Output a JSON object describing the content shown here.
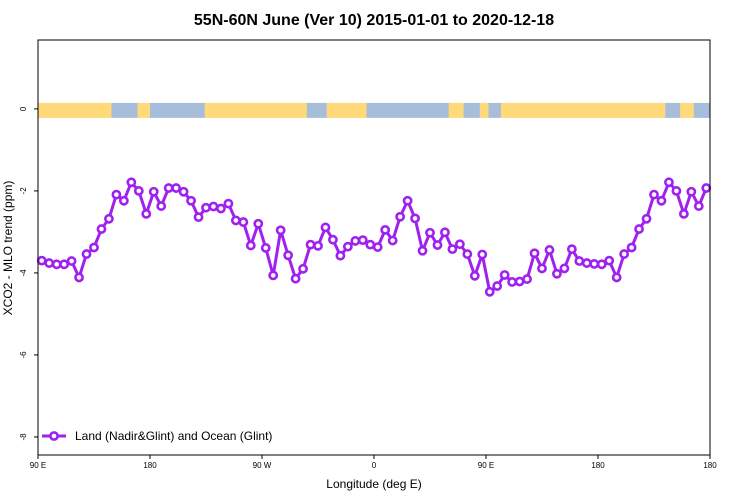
{
  "chart_data": {
    "type": "line",
    "title": "55N-60N June (Ver 10)   2015-01-01 to 2020-12-18",
    "xlabel": "Longitude (deg E)",
    "ylabel": "XCO2 - MLO trend (ppm)",
    "xlim": [
      90,
      630
    ],
    "ylim": [
      -8.44,
      1.68
    ],
    "grid": false,
    "legend_position": "bottom-left",
    "x_ticks": [
      {
        "value": 90,
        "label": "90 E"
      },
      {
        "value": 180,
        "label": "180"
      },
      {
        "value": 270,
        "label": "90 W"
      },
      {
        "value": 360,
        "label": "0"
      },
      {
        "value": 450,
        "label": "90 E"
      },
      {
        "value": 540,
        "label": "180"
      }
    ],
    "y_ticks": [
      {
        "value": 0,
        "label": "0"
      },
      {
        "value": -2,
        "label": "-2"
      },
      {
        "value": -4,
        "label": "-4"
      },
      {
        "value": -6,
        "label": "-6"
      },
      {
        "value": -8,
        "label": "-8"
      }
    ],
    "series": [
      {
        "name": "Land (Nadir&Glint) and Ocean (Glint)",
        "color": "#A020F0",
        "x_start": 93,
        "x_step": 6,
        "values": [
          -3.7,
          -3.76,
          -3.79,
          -3.79,
          -3.71,
          -4.11,
          -3.54,
          -3.38,
          -2.93,
          -2.68,
          -2.09,
          -2.24,
          -1.79,
          -2.0,
          -2.56,
          -2.02,
          -2.37,
          -1.93,
          -1.93,
          -2.02,
          -2.24,
          -2.64,
          -2.41,
          -2.38,
          -2.43,
          -2.31,
          -2.72,
          -2.76,
          -3.33,
          -2.8,
          -3.39,
          -4.06,
          -2.96,
          -3.57,
          -4.14,
          -3.9,
          -3.31,
          -3.34,
          -2.89,
          -3.19,
          -3.58,
          -3.36,
          -3.22,
          -3.2,
          -3.31,
          -3.37,
          -2.95,
          -3.21,
          -2.63,
          -2.24,
          -2.67,
          -3.46,
          -3.02,
          -3.32,
          -3.01,
          -3.42,
          -3.3,
          -3.54,
          -4.07,
          -3.55,
          -4.46,
          -4.32,
          -4.05,
          -4.22,
          -4.21,
          -4.15,
          -3.52,
          -3.89,
          -3.44,
          -4.02,
          -3.89,
          -3.42,
          -3.71,
          -3.76,
          -3.78,
          -3.79,
          -3.7,
          -4.11,
          -3.54,
          -3.38,
          -2.93,
          -2.68,
          -2.09,
          -2.24,
          -1.79,
          -2.0,
          -2.56,
          -2.02,
          -2.37,
          -1.93
        ]
      }
    ],
    "surface_strip": {
      "y_value": 0,
      "colors": {
        "land": "#FFD97A",
        "ocean": "#A7BEDB"
      },
      "segments": [
        {
          "type": "land",
          "from": 90,
          "to": 149
        },
        {
          "type": "ocean",
          "from": 149,
          "to": 170
        },
        {
          "type": "land",
          "from": 170,
          "to": 180
        },
        {
          "type": "ocean",
          "from": 180,
          "to": 224
        },
        {
          "type": "land",
          "from": 224,
          "to": 306
        },
        {
          "type": "ocean",
          "from": 306,
          "to": 322
        },
        {
          "type": "land",
          "from": 322,
          "to": 354
        },
        {
          "type": "ocean",
          "from": 354,
          "to": 420
        },
        {
          "type": "land",
          "from": 420,
          "to": 432
        },
        {
          "type": "ocean",
          "from": 432,
          "to": 445
        },
        {
          "type": "land",
          "from": 445,
          "to": 452
        },
        {
          "type": "ocean",
          "from": 452,
          "to": 462
        },
        {
          "type": "land",
          "from": 462,
          "to": 594
        },
        {
          "type": "ocean",
          "from": 594,
          "to": 606
        },
        {
          "type": "land",
          "from": 606,
          "to": 617
        },
        {
          "type": "ocean",
          "from": 617,
          "to": 630
        }
      ]
    }
  }
}
